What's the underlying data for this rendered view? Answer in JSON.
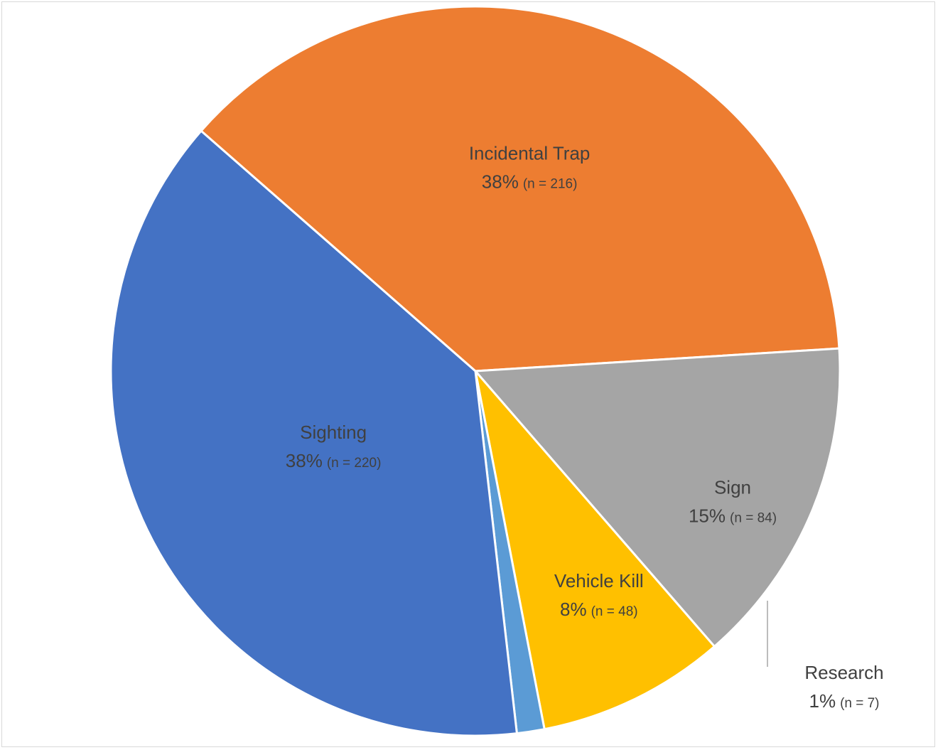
{
  "chart_data": {
    "type": "pie",
    "title": "",
    "legend": "none",
    "slices": [
      {
        "label": "Incidental Trap",
        "percent_label": "38%",
        "n_label": "(n = 216)",
        "value": 216,
        "color": "#ed7d31"
      },
      {
        "label": "Sign",
        "percent_label": "15%",
        "n_label": "(n = 84)",
        "value": 84,
        "color": "#a5a5a5"
      },
      {
        "label": "Vehicle Kill",
        "percent_label": "8%",
        "n_label": "(n = 48)",
        "value": 48,
        "color": "#ffc000"
      },
      {
        "label": "Research",
        "percent_label": "1%",
        "n_label": "(n = 7)",
        "value": 7,
        "color": "#5b9bd5"
      },
      {
        "label": "Sighting",
        "percent_label": "38%",
        "n_label": "(n = 220)",
        "value": 220,
        "color": "#4472c4"
      }
    ]
  }
}
